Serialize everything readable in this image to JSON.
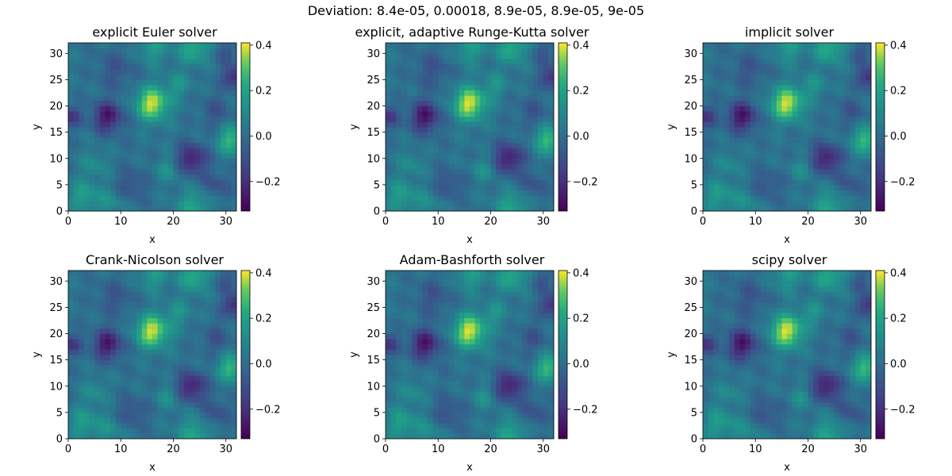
{
  "figure": {
    "suptitle": "Deviation: 8.4e-05, 0.00018, 8.9e-05, 8.9e-05, 9e-05"
  },
  "chart_data": [
    {
      "type": "heatmap",
      "title": "explicit Euler solver",
      "xlabel": "x",
      "ylabel": "y",
      "xlim": [
        0,
        32
      ],
      "ylim": [
        0,
        32
      ],
      "xticks": [
        "0",
        "10",
        "20",
        "30"
      ],
      "yticks": [
        "0",
        "5",
        "10",
        "15",
        "20",
        "25",
        "30"
      ],
      "colorbar": {
        "ticks": [
          "−0.2",
          "0.0",
          "0.2",
          "0.4"
        ],
        "vmin": -0.33,
        "vmax": 0.41,
        "colormap": "viridis"
      },
      "field_seed": 0
    },
    {
      "type": "heatmap",
      "title": "explicit, adaptive Runge-Kutta solver",
      "xlabel": "x",
      "ylabel": "y",
      "xlim": [
        0,
        32
      ],
      "ylim": [
        0,
        32
      ],
      "xticks": [
        "0",
        "10",
        "20",
        "30"
      ],
      "yticks": [
        "0",
        "5",
        "10",
        "15",
        "20",
        "25",
        "30"
      ],
      "colorbar": {
        "ticks": [
          "−0.2",
          "0.0",
          "0.2",
          "0.4"
        ],
        "vmin": -0.33,
        "vmax": 0.41,
        "colormap": "viridis"
      },
      "field_seed": 1
    },
    {
      "type": "heatmap",
      "title": "implicit solver",
      "xlabel": "x",
      "ylabel": "y",
      "xlim": [
        0,
        32
      ],
      "ylim": [
        0,
        32
      ],
      "xticks": [
        "0",
        "10",
        "20",
        "30"
      ],
      "yticks": [
        "0",
        "5",
        "10",
        "15",
        "20",
        "25",
        "30"
      ],
      "colorbar": {
        "ticks": [
          "−0.2",
          "0.0",
          "0.2",
          "0.4"
        ],
        "vmin": -0.33,
        "vmax": 0.41,
        "colormap": "viridis"
      },
      "field_seed": 2
    },
    {
      "type": "heatmap",
      "title": "Crank-Nicolson solver",
      "xlabel": "x",
      "ylabel": "y",
      "xlim": [
        0,
        32
      ],
      "ylim": [
        0,
        32
      ],
      "xticks": [
        "0",
        "10",
        "20",
        "30"
      ],
      "yticks": [
        "0",
        "5",
        "10",
        "15",
        "20",
        "25",
        "30"
      ],
      "colorbar": {
        "ticks": [
          "−0.2",
          "0.0",
          "0.2",
          "0.4"
        ],
        "vmin": -0.33,
        "vmax": 0.41,
        "colormap": "viridis"
      },
      "field_seed": 3
    },
    {
      "type": "heatmap",
      "title": "Adam-Bashforth solver",
      "xlabel": "x",
      "ylabel": "y",
      "xlim": [
        0,
        32
      ],
      "ylim": [
        0,
        32
      ],
      "xticks": [
        "0",
        "10",
        "20",
        "30"
      ],
      "yticks": [
        "0",
        "5",
        "10",
        "15",
        "20",
        "25",
        "30"
      ],
      "colorbar": {
        "ticks": [
          "−0.2",
          "0.0",
          "0.2",
          "0.4"
        ],
        "vmin": -0.33,
        "vmax": 0.41,
        "colormap": "viridis"
      },
      "field_seed": 4
    },
    {
      "type": "heatmap",
      "title": "scipy solver",
      "xlabel": "x",
      "ylabel": "y",
      "xlim": [
        0,
        32
      ],
      "ylim": [
        0,
        32
      ],
      "xticks": [
        "0",
        "10",
        "20",
        "30"
      ],
      "yticks": [
        "0",
        "5",
        "10",
        "15",
        "20",
        "25",
        "30"
      ],
      "colorbar": {
        "ticks": [
          "−0.2",
          "0.0",
          "0.2",
          "0.4"
        ],
        "vmin": -0.33,
        "vmax": 0.41,
        "colormap": "viridis"
      },
      "field_seed": 5
    }
  ]
}
